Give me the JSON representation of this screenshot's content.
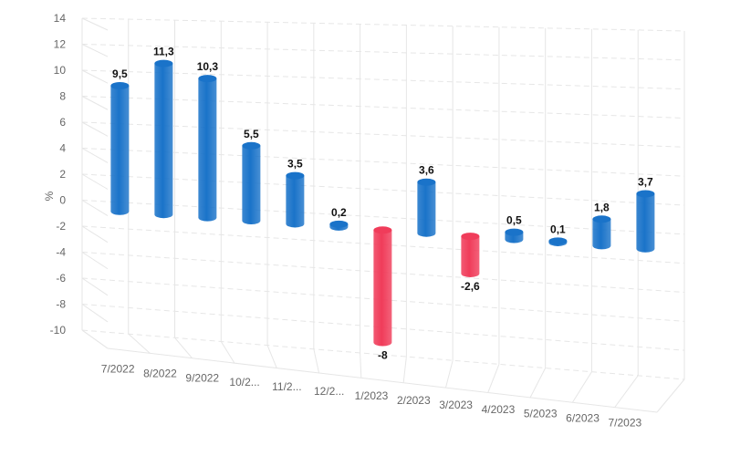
{
  "chart_data": {
    "type": "bar",
    "style": "3d-cylinder",
    "ylabel": "%",
    "ylim": [
      -10,
      14
    ],
    "yticks": [
      14,
      12,
      10,
      8,
      6,
      4,
      2,
      0,
      -2,
      -4,
      -6,
      -8,
      -10
    ],
    "grid": true,
    "categories": [
      "7/2022",
      "8/2022",
      "9/2022",
      "10/2...",
      "11/2...",
      "12/2...",
      "1/2023",
      "2/2023",
      "3/2023",
      "4/2023",
      "5/2023",
      "6/2023",
      "7/2023"
    ],
    "values": [
      9.5,
      11.3,
      10.3,
      5.5,
      3.5,
      0.2,
      -8,
      3.6,
      -2.6,
      0.5,
      0.1,
      1.8,
      3.7
    ],
    "data_labels": [
      "9,5",
      "11,3",
      "10,3",
      "5,5",
      "3,5",
      "0,2",
      "-8",
      "3,6",
      "-2,6",
      "0,5",
      "0,1",
      "1,8",
      "3,7"
    ],
    "colors": {
      "positive": "#1a73c9",
      "negative": "#f03c5a",
      "grid": "#e6e6e6"
    }
  }
}
